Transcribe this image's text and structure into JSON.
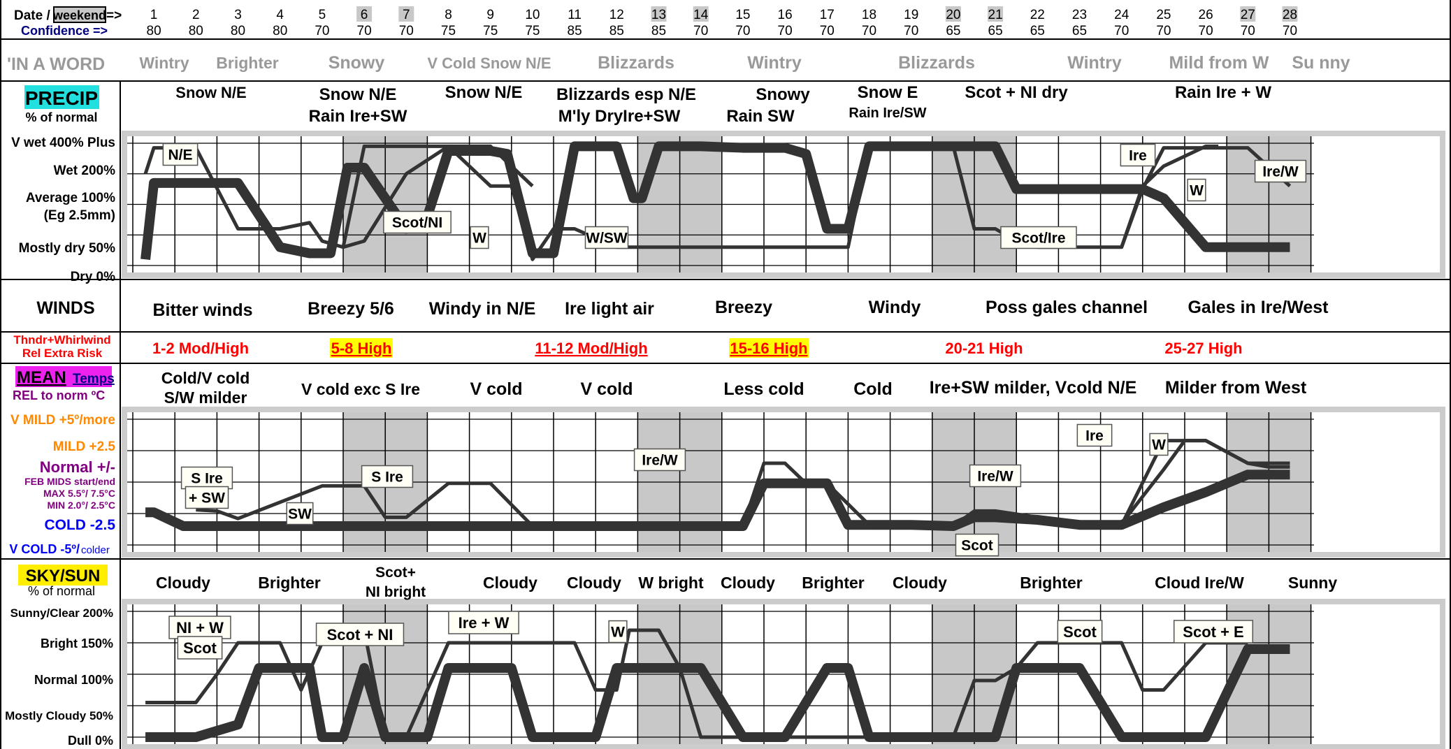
{
  "header": {
    "date_label": "Date /",
    "weekend_label": "weekend",
    "date_arrow": "=>",
    "confidence_label": "Confidence =>",
    "days": [
      "1",
      "2",
      "3",
      "4",
      "5",
      "6",
      "7",
      "8",
      "9",
      "10",
      "11",
      "12",
      "13",
      "14",
      "15",
      "16",
      "17",
      "18",
      "19",
      "20",
      "21",
      "22",
      "23",
      "24",
      "25",
      "26",
      "27",
      "28"
    ],
    "confidence": [
      "80",
      "80",
      "80",
      "80",
      "70",
      "70",
      "70",
      "75",
      "75",
      "75",
      "85",
      "85",
      "85",
      "70",
      "70",
      "70",
      "70",
      "70",
      "70",
      "65",
      "65",
      "65",
      "65",
      "70",
      "70",
      "70",
      "70",
      "70"
    ],
    "weekend_days": [
      "6",
      "7",
      "13",
      "14",
      "20",
      "21",
      "27",
      "28"
    ]
  },
  "in_a_word": {
    "label": "'IN A WORD",
    "items": [
      "Wintry",
      "Brighter",
      "Snowy",
      "V Cold Snow N/E",
      "Blizzards",
      "Wintry",
      "Blizzards",
      "Wintry",
      "Mild from W",
      "Su nny"
    ]
  },
  "precip": {
    "title": "PRECIP",
    "subtitle": "% of normal",
    "headers": [
      "Snow N/E",
      "Snow N/E",
      "Rain Ire+SW",
      "Snow N/E",
      "Blizzards esp N/E",
      "M'ly DryIre+SW",
      "Snowy",
      "Rain SW",
      "Snow E",
      "Rain Ire/SW",
      "Scot + NI dry",
      "Rain Ire + W"
    ],
    "axis_labels": [
      "V wet 400% Plus",
      "Wet  200%",
      "Average 100%",
      "(Eg 2.5mm)",
      "Mostly dry 50%",
      "Dry     0%"
    ],
    "annotations": [
      "N/E",
      "Scot/NI",
      "W",
      "W/SW",
      "Scot/Ire",
      "Ire",
      "W",
      "Ire/W"
    ]
  },
  "winds": {
    "label": "WINDS",
    "items": [
      "Bitter winds",
      "Breezy 5/6",
      "Windy in N/E",
      "Ire light air",
      "Breezy",
      "Windy",
      "Poss gales channel",
      "Gales in Ire/West"
    ]
  },
  "thunder": {
    "label_1": "Thndr+Whirlwind",
    "label_2": "Rel Extra Risk",
    "items": [
      "1-2 Mod/High",
      "5-8 High",
      "11-12 Mod/High",
      "15-16 High",
      "20-21 High",
      "25-27 High"
    ]
  },
  "temps": {
    "title_1": "MEAN",
    "title_2": "Temps",
    "subtitle": "REL to norm ºC",
    "headers": [
      "Cold/V cold",
      "S/W milder",
      "V cold exc S Ire",
      "V cold",
      "V cold",
      "Less cold",
      "Cold",
      "Ire+SW milder, Vcold N/E",
      "Milder from West"
    ],
    "axis_labels": [
      "V MILD +5º/more",
      "MILD +2.5",
      "Normal +/-",
      "FEB  MIDS start/end",
      "MAX  5.5°/ 7.5°C",
      "MIN 2.0°/ 2.5°C",
      "COLD -2.5",
      "V COLD -5º/",
      "colder"
    ],
    "annotations": [
      "S Ire",
      "+ SW",
      "SW",
      "S Ire",
      "Ire/W",
      "Ire/W",
      "Scot",
      "Ire",
      "W"
    ]
  },
  "sky": {
    "title": "SKY/SUN",
    "subtitle": "% of normal",
    "headers": [
      "Cloudy",
      "Brighter",
      "Scot+",
      "NI bright",
      "Cloudy",
      "Cloudy",
      "W bright",
      "Cloudy",
      "Brighter",
      "Cloudy",
      "Brighter",
      "Cloud Ire/W",
      "Sunny"
    ],
    "axis_labels": [
      "Sunny/Clear 200%",
      "Bright 150%",
      "Normal 100%",
      "Mostly Cloudy 50%",
      "Dull 0%"
    ],
    "annotations": [
      "NI + W",
      "Scot",
      "Scot + NI",
      "Ire + W",
      "W",
      "Scot",
      "Scot + E"
    ]
  },
  "colors": {
    "weekend_shade": "#c8c8c8",
    "line": "#333333",
    "precip_title_bg": "#22e0e0",
    "temps_title_bg": "#ee22ee",
    "sky_title_bg": "#ffee00",
    "thunder_red": "#ff0000",
    "highlight_yellow": "#ffff00",
    "vmild_orange": "#ff8800",
    "normal_purple": "#800080",
    "cold_blue": "#0000ff",
    "confidence_blue": "#000080",
    "gray_text": "#999999"
  },
  "chart_data": [
    {
      "type": "line",
      "title": "PRECIP",
      "x": [
        1,
        2,
        3,
        4,
        5,
        6,
        7,
        8,
        9,
        10,
        11,
        12,
        13,
        14,
        15,
        16,
        17,
        18,
        19,
        20,
        21,
        22,
        23,
        24,
        25,
        26,
        27,
        28
      ],
      "ylim": [
        0,
        400
      ],
      "y_scale": "categorical % of normal (0, 50, 100, 200, 400)",
      "yticks": [
        "Dry 0%",
        "Mostly dry 50%",
        "Average 100%",
        "Wet 200%",
        "V wet 400% Plus"
      ],
      "series": [
        {
          "style": "thick",
          "x": [
            0.8,
            1,
            2,
            3,
            4,
            4.7,
            5.2,
            5.6,
            6,
            7,
            7.5,
            8,
            9,
            9.4,
            10,
            10.5,
            11,
            11.5,
            12,
            12.4,
            12.6,
            13,
            14,
            15,
            16,
            16.5,
            17,
            17.5,
            18,
            19,
            20,
            20.5,
            21,
            21.5,
            22,
            23,
            24,
            24.5,
            25,
            26,
            27,
            28
          ],
          "y": [
            10,
            170,
            170,
            170,
            30,
            20,
            20,
            240,
            240,
            60,
            80,
            350,
            350,
            330,
            20,
            20,
            380,
            380,
            380,
            120,
            120,
            380,
            380,
            370,
            370,
            330,
            60,
            60,
            380,
            380,
            380,
            380,
            380,
            150,
            150,
            150,
            150,
            150,
            120,
            30,
            30,
            30
          ]
        },
        {
          "style": "thin",
          "x": [
            0.8,
            1,
            2,
            3,
            4,
            4.7,
            5,
            5.5,
            6,
            7,
            8,
            9,
            9.5,
            10,
            10.5,
            11,
            12,
            13,
            14,
            15,
            16,
            17,
            17.5,
            18,
            19,
            20,
            20.5,
            21,
            21.5,
            22,
            23,
            24,
            24.5,
            25,
            26,
            27,
            28
          ],
          "y": [
            200,
            370,
            370,
            60,
            60,
            70,
            40,
            30,
            380,
            380,
            380,
            160,
            160,
            10,
            60,
            60,
            30,
            30,
            30,
            30,
            30,
            30,
            30,
            380,
            380,
            380,
            60,
            60,
            40,
            30,
            30,
            30,
            150,
            370,
            370,
            370,
            160
          ]
        },
        {
          "style": "thin",
          "x": [
            5.5,
            6,
            7,
            8,
            9,
            10
          ],
          "y": [
            30,
            40,
            200,
            380,
            380,
            160
          ]
        },
        {
          "style": "thin",
          "x": [
            24,
            24.5,
            25,
            26,
            26.3
          ],
          "y": [
            30,
            160,
            250,
            380,
            380
          ]
        }
      ]
    },
    {
      "type": "line",
      "title": "MEAN Temps",
      "x": [
        1,
        2,
        3,
        4,
        5,
        6,
        7,
        8,
        9,
        10,
        11,
        12,
        13,
        14,
        15,
        16,
        17,
        18,
        19,
        20,
        21,
        22,
        23,
        24,
        25,
        26,
        27,
        28
      ],
      "ylim": [
        -5,
        5
      ],
      "yticks": [
        "V COLD -5",
        "COLD -2.5",
        "Normal",
        "MILD +2.5",
        "V MILD +5"
      ],
      "series": [
        {
          "style": "thick",
          "x": [
            0.8,
            1,
            1.7,
            2,
            3,
            4,
            5,
            6,
            7,
            8,
            9,
            10,
            11,
            12,
            13,
            14,
            15,
            15.5,
            16,
            17,
            17.5,
            18,
            19,
            20,
            20.5,
            21,
            22,
            23,
            24,
            25,
            26,
            27,
            28
          ],
          "y": [
            -2.4,
            -2.4,
            -3.5,
            -3.5,
            -3.5,
            -3.5,
            -3.5,
            -3.5,
            -3.5,
            -3.5,
            -3.5,
            -3.5,
            -3.5,
            -3.5,
            -3.5,
            -3.5,
            -3.5,
            -0.1,
            -0.1,
            -0.1,
            -3.4,
            -3.4,
            -3.4,
            -3.5,
            -2.8,
            -2.8,
            -3.0,
            -3.4,
            -3.4,
            -2.0,
            -0.8,
            0.6,
            0.6
          ]
        },
        {
          "style": "thin",
          "x": [
            2,
            2.5,
            3,
            5,
            6,
            6.5,
            7,
            8,
            9,
            10,
            12,
            13,
            14,
            15,
            15.5,
            16,
            16.5,
            17,
            18,
            19,
            20,
            20.5,
            21,
            22,
            23,
            24,
            25,
            26,
            27,
            28
          ],
          "y": [
            -2.2,
            -2.3,
            -2.9,
            -0.3,
            -0.3,
            -2.8,
            -2.8,
            -0.1,
            -0.1,
            -3.5,
            -3.5,
            -3.5,
            -3.5,
            -3.5,
            1.5,
            1.5,
            -0.1,
            -0.1,
            -3.4,
            -3.4,
            -3.5,
            -2.3,
            -2.3,
            -2.8,
            -3.3,
            -3.4,
            3.3,
            3.3,
            1.5,
            1.5
          ]
        },
        {
          "style": "thin",
          "x": [
            24,
            25,
            25.5,
            26,
            27,
            27.5,
            28
          ],
          "y": [
            -3.3,
            1.0,
            3.3,
            3.3,
            1.5,
            1.2,
            1.2
          ]
        }
      ]
    },
    {
      "type": "line",
      "title": "SKY/SUN",
      "x": [
        1,
        2,
        3,
        4,
        5,
        6,
        7,
        8,
        9,
        10,
        11,
        12,
        13,
        14,
        15,
        16,
        17,
        18,
        19,
        20,
        21,
        22,
        23,
        24,
        25,
        26,
        27,
        28
      ],
      "ylim": [
        0,
        200
      ],
      "yticks": [
        "Dull 0%",
        "Mostly Cloudy 50%",
        "Normal 100%",
        "Bright 150%",
        "Sunny/Clear 200%"
      ],
      "series": [
        {
          "style": "thick",
          "x": [
            0.8,
            1,
            2,
            3,
            3.5,
            4,
            4.7,
            5,
            5.5,
            6,
            6.5,
            7,
            7.5,
            8,
            9,
            9.5,
            10,
            11,
            11.5,
            12,
            12.5,
            13,
            14,
            15,
            15.5,
            16,
            17,
            17.5,
            18,
            18.5,
            19,
            20,
            21,
            21.5,
            22,
            23,
            24,
            24.5,
            25,
            26,
            27,
            28
          ],
          "y": [
            0,
            0,
            0,
            20,
            110,
            110,
            110,
            0,
            0,
            110,
            0,
            0,
            0,
            110,
            110,
            110,
            0,
            0,
            0,
            110,
            110,
            110,
            110,
            0,
            0,
            0,
            110,
            110,
            0,
            0,
            0,
            0,
            0,
            110,
            110,
            110,
            0,
            0,
            0,
            0,
            140,
            140
          ]
        },
        {
          "style": "thin",
          "x": [
            0.8,
            1,
            2,
            2.5,
            3,
            4,
            4.5,
            5,
            5.5,
            6,
            6.5,
            7,
            8,
            9,
            10,
            11,
            11.5,
            12,
            12.3,
            12.6,
            13,
            13.5,
            14,
            15,
            16,
            17,
            18,
            19,
            20,
            20.5,
            21,
            21.5,
            22,
            23,
            24,
            24.5,
            25,
            26,
            27
          ],
          "y": [
            55,
            55,
            55,
            100,
            150,
            150,
            75,
            150,
            150,
            170,
            0,
            0,
            150,
            150,
            150,
            150,
            75,
            75,
            170,
            170,
            170,
            110,
            0,
            0,
            0,
            0,
            0,
            0,
            0,
            90,
            90,
            110,
            150,
            150,
            150,
            75,
            75,
            150,
            150
          ]
        }
      ]
    }
  ]
}
